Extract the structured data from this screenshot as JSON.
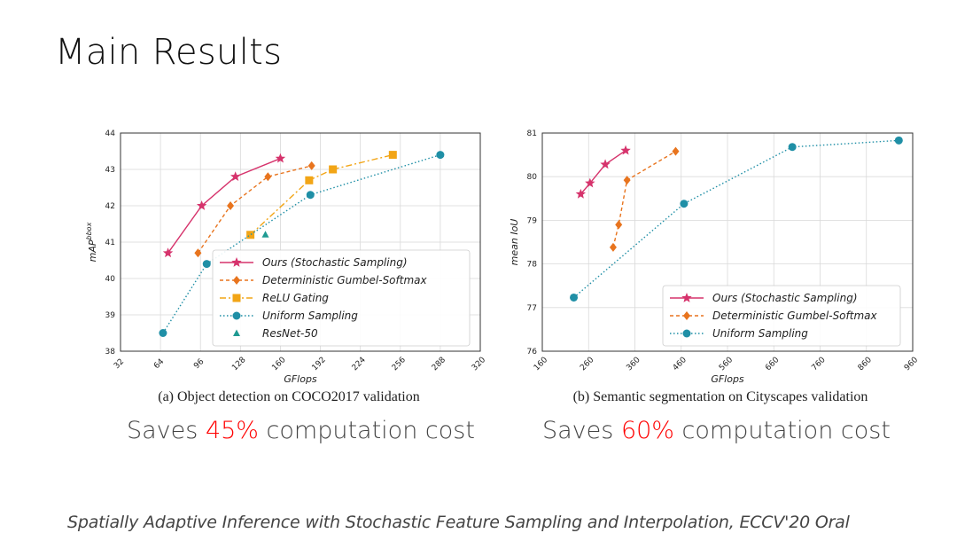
{
  "slide": {
    "title": "Main Results",
    "savings_left": {
      "prefix": "Saves ",
      "value": "45%",
      "suffix": " computation cost"
    },
    "savings_right": {
      "prefix": "Saves ",
      "value": "60%",
      "suffix": " computation cost"
    },
    "citation": "Spatially Adaptive Inference with Stochastic Feature Sampling and Interpolation, ECCV'20 Oral"
  },
  "colors": {
    "ours": "#d6336c",
    "gumbel": "#e8741e",
    "relu": "#f2a516",
    "uniform": "#1f8fa6",
    "resnet": "#1f9a92",
    "grid": "#d9d9d9"
  },
  "chart_data": [
    {
      "type": "line",
      "caption": "(a) Object detection on COCO2017 validation",
      "xlabel": "GFlops",
      "ylabel": "mAP",
      "ylabel_sup": "bbox",
      "xlim": [
        32,
        320
      ],
      "ylim": [
        38,
        44
      ],
      "xticks": [
        32,
        64,
        96,
        128,
        160,
        192,
        224,
        256,
        288,
        320
      ],
      "yticks": [
        38,
        39,
        40,
        41,
        42,
        43,
        44
      ],
      "grid": true,
      "legend_position": "lower-right",
      "series": [
        {
          "name": "Ours (Stochastic Sampling)",
          "key": "ours",
          "marker": "star",
          "line": "solid",
          "x": [
            70,
            97,
            124,
            160
          ],
          "y": [
            40.7,
            42.0,
            42.8,
            43.3
          ]
        },
        {
          "name": "Deterministic Gumbel-Softmax",
          "key": "gumbel",
          "marker": "diamond",
          "line": "dashed",
          "x": [
            94,
            120,
            150,
            185
          ],
          "y": [
            40.7,
            42.0,
            42.8,
            43.1
          ]
        },
        {
          "name": "ReLU Gating",
          "key": "relu",
          "marker": "square",
          "line": "dashdot",
          "x": [
            136,
            183,
            202,
            250
          ],
          "y": [
            41.2,
            42.7,
            43.0,
            43.4
          ]
        },
        {
          "name": "Uniform Sampling",
          "key": "uniform",
          "marker": "circle",
          "line": "dotted",
          "x": [
            66,
            101,
            184,
            288
          ],
          "y": [
            38.5,
            40.4,
            42.3,
            43.4
          ]
        },
        {
          "name": "ResNet-50",
          "key": "resnet",
          "marker": "triangle",
          "line": "none",
          "x": [
            148
          ],
          "y": [
            41.2
          ]
        }
      ]
    },
    {
      "type": "line",
      "caption": "(b) Semantic segmentation on Cityscapes validation",
      "xlabel": "GFlops",
      "ylabel": "mean IoU",
      "xlim": [
        160,
        960
      ],
      "ylim": [
        76,
        81
      ],
      "xticks": [
        160,
        260,
        360,
        460,
        560,
        660,
        760,
        860,
        960
      ],
      "yticks": [
        76,
        77,
        78,
        79,
        80,
        81
      ],
      "grid": true,
      "legend_position": "lower-right",
      "series": [
        {
          "name": "Ours (Stochastic Sampling)",
          "key": "ours",
          "marker": "star",
          "line": "solid",
          "x": [
            243,
            263,
            296,
            340
          ],
          "y": [
            79.6,
            79.85,
            80.28,
            80.6
          ]
        },
        {
          "name": "Deterministic Gumbel-Softmax",
          "key": "gumbel",
          "marker": "diamond",
          "line": "dashed",
          "x": [
            313,
            325,
            343,
            448
          ],
          "y": [
            78.38,
            78.9,
            79.92,
            80.58
          ]
        },
        {
          "name": "Uniform Sampling",
          "key": "uniform",
          "marker": "circle",
          "line": "dotted",
          "x": [
            228,
            466,
            700,
            930
          ],
          "y": [
            77.23,
            79.38,
            80.68,
            80.83
          ]
        }
      ]
    }
  ]
}
